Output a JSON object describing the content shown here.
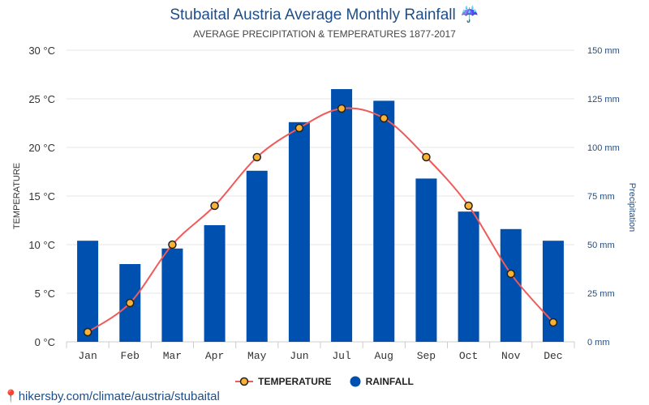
{
  "chart_data": {
    "type": "bar+line",
    "title": "Stubaital Austria Average Monthly Rainfall",
    "title_icon": "umbrella-rain-icon",
    "subtitle": "AVERAGE PRECIPITATION & TEMPERATURES 1877-2017",
    "categories": [
      "Jan",
      "Feb",
      "Mar",
      "Apr",
      "May",
      "Jun",
      "Jul",
      "Aug",
      "Sep",
      "Oct",
      "Nov",
      "Dec"
    ],
    "series": [
      {
        "name": "TEMPERATURE",
        "type": "line",
        "axis": "left",
        "unit": "°C",
        "color": "#f05a5a",
        "values": [
          1,
          4,
          10,
          14,
          19,
          22,
          24,
          23,
          19,
          14,
          7,
          2
        ]
      },
      {
        "name": "RAINFALL",
        "type": "bar",
        "axis": "right",
        "unit": "mm",
        "color": "#0050b0",
        "values": [
          52,
          40,
          48,
          60,
          88,
          113,
          130,
          124,
          84,
          67,
          58,
          52
        ]
      }
    ],
    "ylabel_left": "TEMPERATURE",
    "ylabel_right": "Precipitation",
    "ylim_left": [
      0,
      30
    ],
    "ylim_right": [
      0,
      150
    ],
    "yticks_left": [
      "0 °C",
      "5 °C",
      "10 °C",
      "15 °C",
      "20 °C",
      "25 °C",
      "30 °C"
    ],
    "yticks_right": [
      "0 mm",
      "25 mm",
      "50 mm",
      "75 mm",
      "100 mm",
      "125 mm",
      "150 mm"
    ],
    "grid": true,
    "legend_position": "bottom"
  },
  "footer": {
    "text": "hikersby.com/climate/austria/stubaital",
    "icon": "map-pin-icon"
  }
}
